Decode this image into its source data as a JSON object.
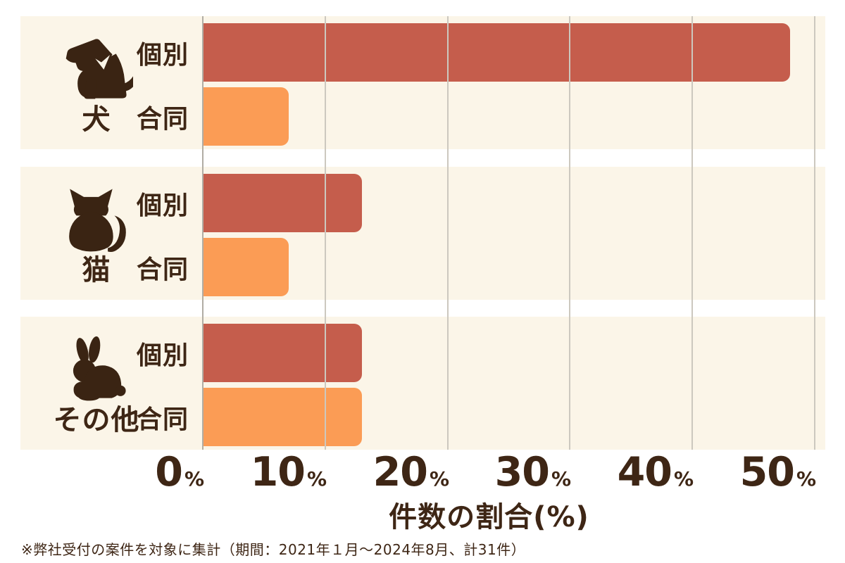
{
  "colors": {
    "page-bg": "#ffffff",
    "panel-bg": "#fbf5e8",
    "bar-individual": "#c55d4c",
    "bar-joint": "#fb9c55",
    "text-dark": "#3e2615",
    "icon-brown": "#3a2413",
    "gridline": "#ccc8bf",
    "axis-line": "#b1ada4"
  },
  "chart_data": {
    "type": "bar",
    "orientation": "horizontal",
    "title": "",
    "xlabel": "件数の割合(%)",
    "xlim": [
      0,
      50
    ],
    "grid": true,
    "legend": "none",
    "series_names": [
      "個別",
      "合同"
    ],
    "xticks": [
      {
        "num": "0",
        "sym": "%"
      },
      {
        "num": "10",
        "sym": "%"
      },
      {
        "num": "20",
        "sym": "%"
      },
      {
        "num": "30",
        "sym": "%"
      },
      {
        "num": "40",
        "sym": "%"
      },
      {
        "num": "50",
        "sym": "%"
      }
    ],
    "groups": [
      {
        "category": "犬",
        "icon": "dog-icon",
        "values": {
          "individual": 48,
          "joint": 7
        }
      },
      {
        "category": "猫",
        "icon": "cat-icon",
        "values": {
          "individual": 13,
          "joint": 7
        }
      },
      {
        "category": "その他",
        "icon": "rabbit-icon",
        "values": {
          "individual": 13,
          "joint": 13
        }
      }
    ]
  },
  "footnote": "※弊社受付の案件を対象に集計（期間：2021年１月～2024年8月、計31件）"
}
